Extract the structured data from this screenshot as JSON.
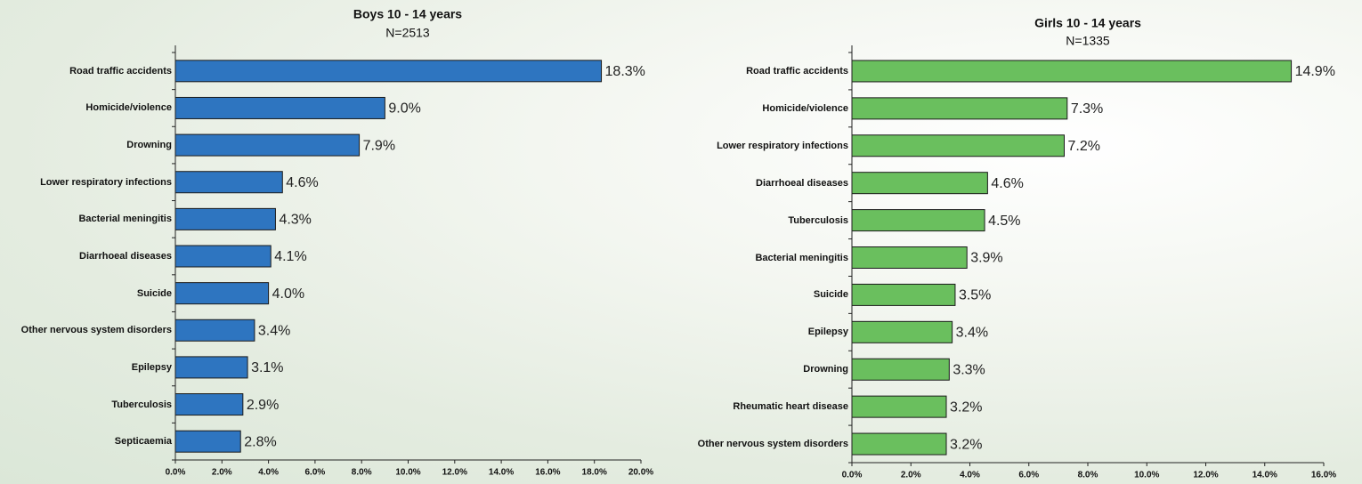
{
  "chart_data": [
    {
      "type": "bar",
      "orientation": "horizontal",
      "title": "Boys 10 - 14 years",
      "subtitle": "N=2513",
      "categories": [
        "Road traffic accidents",
        "Homicide/violence",
        "Drowning",
        "Lower respiratory infections",
        "Bacterial meningitis",
        "Diarrhoeal diseases",
        "Suicide",
        "Other nervous system disorders",
        "Epilepsy",
        "Tuberculosis",
        "Septicaemia"
      ],
      "values": [
        18.3,
        9.0,
        7.9,
        4.6,
        4.3,
        4.1,
        4.0,
        3.4,
        3.1,
        2.9,
        2.8
      ],
      "value_labels": [
        "18.3%",
        "9.0%",
        "7.9%",
        "4.6%",
        "4.3%",
        "4.1%",
        "4.0%",
        "3.4%",
        "3.1%",
        "2.9%",
        "2.8%"
      ],
      "color": "#2e75c0",
      "xlim": [
        0,
        20
      ],
      "xticks": [
        {
          "value": 0,
          "label": "0.0%"
        },
        {
          "value": 2,
          "label": "2.0%"
        },
        {
          "value": 4,
          "label": "4.0%"
        },
        {
          "value": 6,
          "label": "6.0%"
        },
        {
          "value": 8,
          "label": "8.0%"
        },
        {
          "value": 10,
          "label": "10.0%"
        },
        {
          "value": 12,
          "label": "12.0%"
        },
        {
          "value": 14,
          "label": "14.0%"
        },
        {
          "value": 16,
          "label": "16.0%"
        },
        {
          "value": 18,
          "label": "18.0%"
        },
        {
          "value": 20,
          "label": "20.0%"
        }
      ]
    },
    {
      "type": "bar",
      "orientation": "horizontal",
      "title": "Girls 10 - 14 years",
      "subtitle": "N=1335",
      "categories": [
        "Road traffic accidents",
        "Homicide/violence",
        "Lower respiratory infections",
        "Diarrhoeal diseases",
        "Tuberculosis",
        "Bacterial meningitis",
        "Suicide",
        "Epilepsy",
        "Drowning",
        "Rheumatic heart disease",
        "Other nervous system disorders"
      ],
      "values": [
        14.9,
        7.3,
        7.2,
        4.6,
        4.5,
        3.9,
        3.5,
        3.4,
        3.3,
        3.2,
        3.2
      ],
      "value_labels": [
        "14.9%",
        "7.3%",
        "7.2%",
        "4.6%",
        "4.5%",
        "3.9%",
        "3.5%",
        "3.4%",
        "3.3%",
        "3.2%",
        "3.2%"
      ],
      "color": "#6abf5e",
      "xlim": [
        0,
        16
      ],
      "xticks": [
        {
          "value": 0,
          "label": "0.0%"
        },
        {
          "value": 2,
          "label": "2.0%"
        },
        {
          "value": 4,
          "label": "4.0%"
        },
        {
          "value": 6,
          "label": "6.0%"
        },
        {
          "value": 8,
          "label": "8.0%"
        },
        {
          "value": 10,
          "label": "10.0%"
        },
        {
          "value": 12,
          "label": "12.0%"
        },
        {
          "value": 14,
          "label": "14.0%"
        },
        {
          "value": 16,
          "label": "16.0%"
        }
      ]
    }
  ]
}
